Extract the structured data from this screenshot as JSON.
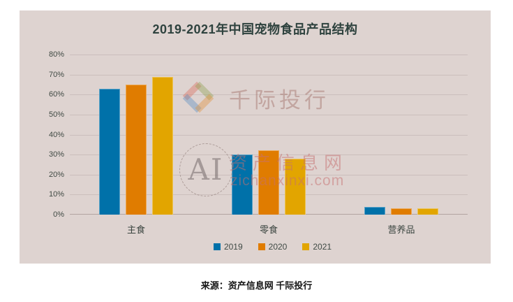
{
  "chart_data": {
    "type": "bar",
    "title": "2019-2021年中国宠物食品产品结构",
    "categories": [
      "主食",
      "零食",
      "营养品"
    ],
    "series": [
      {
        "name": "2019",
        "color": "#0071a9",
        "values": [
          63,
          30,
          4
        ]
      },
      {
        "name": "2020",
        "color": "#e07c00",
        "values": [
          65,
          32,
          3
        ]
      },
      {
        "name": "2021",
        "color": "#e2a500",
        "values": [
          69,
          28,
          3
        ]
      }
    ],
    "unit": "%",
    "ylim": [
      0,
      80
    ],
    "y_ticks": [
      "0%",
      "10%",
      "20%",
      "30%",
      "40%",
      "50%",
      "60%",
      "70%",
      "80%"
    ],
    "grid": true,
    "legend_position": "bottom",
    "plot_bg": "#ded3d0"
  },
  "watermark": {
    "brand": "千际投行",
    "ai_text": "AI",
    "site_name": "资产信息网",
    "site_url": "zichanxinxi.com"
  },
  "source": {
    "text": "来源：资产信息网 千际投行"
  },
  "colors": {
    "panel_bg": "#ded3d0",
    "gridline": "#cbbebc",
    "axis_line": "#b3a4a1",
    "title_text": "#2e423e",
    "axis_text": "#3f4943",
    "bar_2019": "#0071a9",
    "bar_2020": "#e07c00",
    "bar_2021": "#e2a500"
  }
}
